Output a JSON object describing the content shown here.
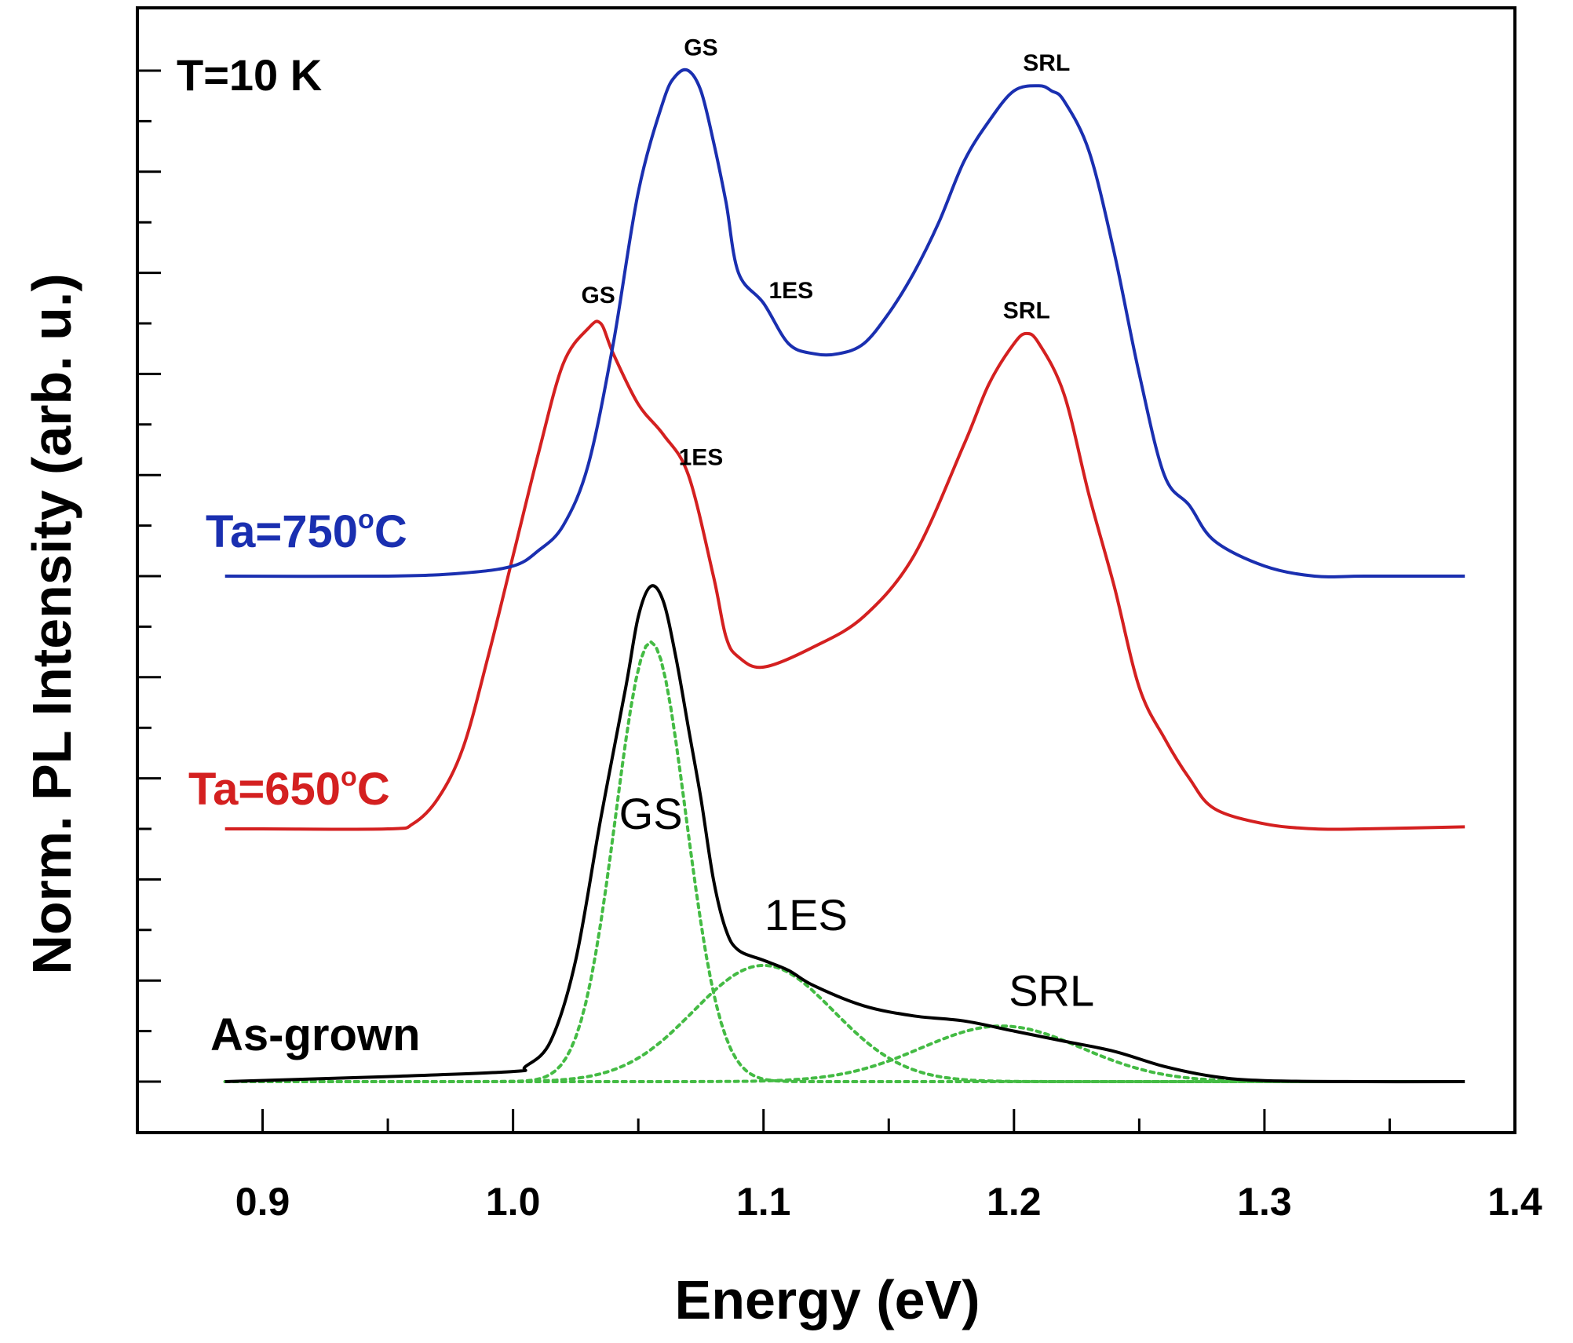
{
  "chart_data": {
    "type": "line",
    "title": "",
    "xlabel": "Energy (eV)",
    "ylabel": "Norm. PL Intensity (arb. u.)",
    "xlim": [
      0.85,
      1.4
    ],
    "ylim": [
      -0.55,
      10.0
    ],
    "xticks": [
      "0.9",
      "1.0",
      "1.1",
      "1.2",
      "1.3",
      "1.4"
    ],
    "grid": false,
    "temperature_label": "T=10 K",
    "series": [
      {
        "name": "As-grown",
        "color": "#000000",
        "x": [
          0.885,
          0.95,
          1.0,
          1.005,
          1.015,
          1.025,
          1.035,
          1.045,
          1.05,
          1.055,
          1.06,
          1.065,
          1.07,
          1.075,
          1.08,
          1.085,
          1.09,
          1.1,
          1.11,
          1.12,
          1.14,
          1.16,
          1.18,
          1.2,
          1.22,
          1.24,
          1.26,
          1.28,
          1.3,
          1.34,
          1.38
        ],
        "y": [
          0.0,
          0.05,
          0.1,
          0.15,
          0.4,
          1.2,
          2.6,
          3.9,
          4.6,
          4.9,
          4.75,
          4.2,
          3.5,
          2.8,
          2.0,
          1.5,
          1.3,
          1.2,
          1.1,
          0.95,
          0.75,
          0.65,
          0.6,
          0.5,
          0.4,
          0.3,
          0.15,
          0.05,
          0.01,
          0.0,
          0.0
        ],
        "annotations": [
          {
            "text": "GS",
            "x": 1.055,
            "y": 2.5
          },
          {
            "text": "1ES",
            "x": 1.117,
            "y": 1.5
          },
          {
            "text": "SRL",
            "x": 1.215,
            "y": 0.75
          }
        ]
      },
      {
        "name": "Ta=650°C",
        "color": "#d42020",
        "x": [
          0.885,
          0.9,
          0.95,
          0.96,
          0.97,
          0.98,
          0.99,
          1.0,
          1.01,
          1.02,
          1.03,
          1.035,
          1.04,
          1.05,
          1.06,
          1.07,
          1.08,
          1.085,
          1.09,
          1.1,
          1.12,
          1.14,
          1.16,
          1.18,
          1.19,
          1.2,
          1.205,
          1.21,
          1.22,
          1.23,
          1.24,
          1.25,
          1.26,
          1.27,
          1.28,
          1.3,
          1.32,
          1.34,
          1.38
        ],
        "y": [
          2.5,
          2.5,
          2.5,
          2.55,
          2.8,
          3.3,
          4.2,
          5.2,
          6.2,
          7.1,
          7.45,
          7.5,
          7.2,
          6.7,
          6.4,
          6.0,
          5.0,
          4.4,
          4.2,
          4.1,
          4.3,
          4.6,
          5.2,
          6.3,
          6.9,
          7.3,
          7.4,
          7.3,
          6.8,
          5.8,
          4.9,
          3.9,
          3.4,
          3.0,
          2.7,
          2.55,
          2.5,
          2.5,
          2.52
        ],
        "annotations": [
          {
            "text": "GS",
            "x": 1.034,
            "y": 7.7
          },
          {
            "text": "1ES",
            "x": 1.075,
            "y": 6.1
          },
          {
            "text": "SRL",
            "x": 1.205,
            "y": 7.55
          }
        ]
      },
      {
        "name": "Ta=750°C",
        "color": "#1a2fb0",
        "x": [
          0.885,
          0.95,
          0.98,
          1.0,
          1.01,
          1.02,
          1.03,
          1.04,
          1.05,
          1.06,
          1.065,
          1.07,
          1.075,
          1.08,
          1.085,
          1.09,
          1.1,
          1.11,
          1.12,
          1.13,
          1.14,
          1.15,
          1.16,
          1.17,
          1.18,
          1.19,
          1.2,
          1.21,
          1.215,
          1.22,
          1.23,
          1.24,
          1.25,
          1.26,
          1.27,
          1.28,
          1.3,
          1.32,
          1.34,
          1.38
        ],
        "y": [
          5.0,
          5.0,
          5.03,
          5.1,
          5.25,
          5.5,
          6.1,
          7.3,
          8.8,
          9.7,
          9.95,
          10.0,
          9.8,
          9.3,
          8.7,
          8.0,
          7.7,
          7.3,
          7.2,
          7.2,
          7.3,
          7.6,
          8.0,
          8.5,
          9.1,
          9.5,
          9.8,
          9.85,
          9.8,
          9.7,
          9.2,
          8.2,
          7.0,
          6.0,
          5.7,
          5.35,
          5.1,
          5.0,
          5.0,
          5.0
        ],
        "annotations": [
          {
            "text": "GS",
            "x": 1.075,
            "y": 10.15
          },
          {
            "text": "1ES",
            "x": 1.111,
            "y": 7.75
          },
          {
            "text": "SRL",
            "x": 1.213,
            "y": 10.0
          }
        ]
      },
      {
        "name": "GS fit",
        "color": "#44bb44",
        "dotted": true,
        "fit": {
          "center": 1.055,
          "height": 4.35,
          "sigma": 0.014
        }
      },
      {
        "name": "1ES fit",
        "color": "#44bb44",
        "dotted": true,
        "fit": {
          "center": 1.1,
          "height": 1.15,
          "sigma": 0.028
        }
      },
      {
        "name": "SRL fit",
        "color": "#44bb44",
        "dotted": true,
        "fit": {
          "center": 1.195,
          "height": 0.55,
          "sigma": 0.032
        }
      }
    ],
    "legend": [
      {
        "text": "Ta=750°C",
        "color": "#1a2fb0"
      },
      {
        "text": "Ta=650°C",
        "color": "#d42020"
      },
      {
        "text": "As-grown",
        "color": "#000000"
      }
    ]
  }
}
